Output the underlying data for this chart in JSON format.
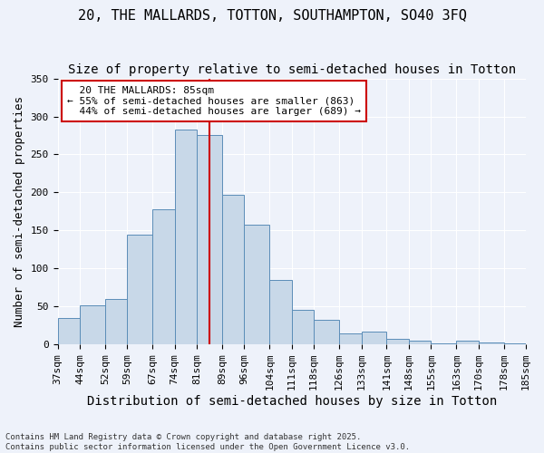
{
  "title": "20, THE MALLARDS, TOTTON, SOUTHAMPTON, SO40 3FQ",
  "subtitle": "Size of property relative to semi-detached houses in Totton",
  "xlabel": "Distribution of semi-detached houses by size in Totton",
  "ylabel": "Number of semi-detached properties",
  "bar_heights": [
    35,
    51,
    60,
    145,
    178,
    283,
    275,
    197,
    158,
    85,
    46,
    32,
    15,
    17,
    8,
    5,
    2,
    5,
    3,
    2
  ],
  "bin_edges": [
    37,
    44,
    52,
    59,
    67,
    74,
    81,
    89,
    96,
    104,
    111,
    118,
    126,
    133,
    141,
    148,
    155,
    163,
    170,
    178,
    185
  ],
  "property_size": 85,
  "property_label": "20 THE MALLARDS: 85sqm",
  "pct_smaller": 55,
  "pct_larger": 44,
  "n_smaller": 863,
  "n_larger": 689,
  "bar_color": "#c8d8e8",
  "bar_edge_color": "#5b8db8",
  "vline_color": "#cc0000",
  "annotation_box_color": "#cc0000",
  "background_color": "#eef2fa",
  "grid_color": "#ffffff",
  "title_fontsize": 11,
  "subtitle_fontsize": 10,
  "axis_label_fontsize": 9,
  "tick_fontsize": 8,
  "annotation_fontsize": 8,
  "footer_text": "Contains HM Land Registry data © Crown copyright and database right 2025.\nContains public sector information licensed under the Open Government Licence v3.0.",
  "ylim": [
    0,
    350
  ],
  "yticks": [
    0,
    50,
    100,
    150,
    200,
    250,
    300,
    350
  ]
}
